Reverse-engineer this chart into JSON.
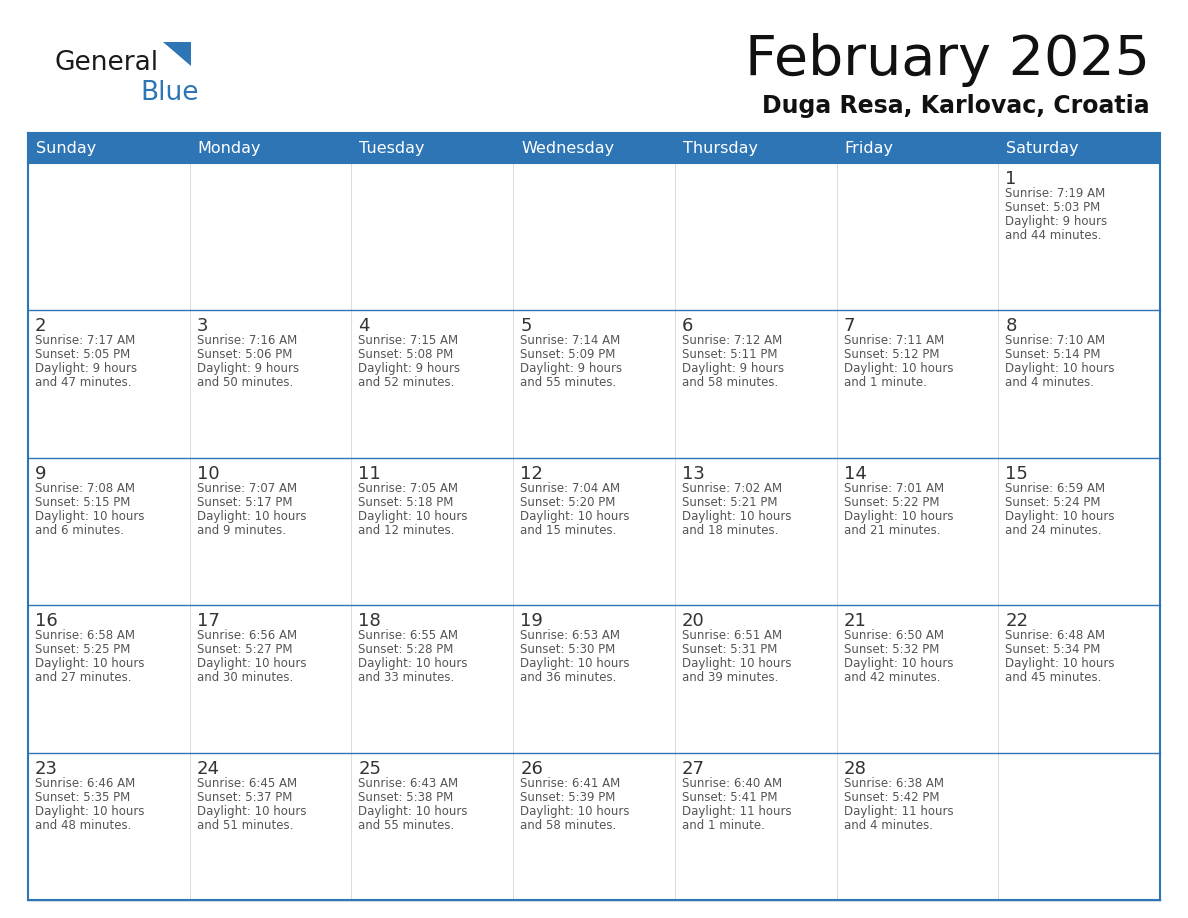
{
  "title": "February 2025",
  "subtitle": "Duga Resa, Karlovac, Croatia",
  "days_of_week": [
    "Sunday",
    "Monday",
    "Tuesday",
    "Wednesday",
    "Thursday",
    "Friday",
    "Saturday"
  ],
  "header_bg": "#2E75B6",
  "header_text": "#FFFFFF",
  "cell_bg": "#FFFFFF",
  "row_alt_bg": "#F2F2F2",
  "day_number_color": "#333333",
  "info_text_color": "#555555",
  "line_color": "#2E75B6",
  "logo_general_color": "#1a1a1a",
  "logo_blue_color": "#2E75B6",
  "calendar_data": [
    [
      null,
      null,
      null,
      null,
      null,
      null,
      {
        "day": "1",
        "sunrise": "7:19 AM",
        "sunset": "5:03 PM",
        "daylight": "9 hours\nand 44 minutes."
      }
    ],
    [
      {
        "day": "2",
        "sunrise": "7:17 AM",
        "sunset": "5:05 PM",
        "daylight": "9 hours\nand 47 minutes."
      },
      {
        "day": "3",
        "sunrise": "7:16 AM",
        "sunset": "5:06 PM",
        "daylight": "9 hours\nand 50 minutes."
      },
      {
        "day": "4",
        "sunrise": "7:15 AM",
        "sunset": "5:08 PM",
        "daylight": "9 hours\nand 52 minutes."
      },
      {
        "day": "5",
        "sunrise": "7:14 AM",
        "sunset": "5:09 PM",
        "daylight": "9 hours\nand 55 minutes."
      },
      {
        "day": "6",
        "sunrise": "7:12 AM",
        "sunset": "5:11 PM",
        "daylight": "9 hours\nand 58 minutes."
      },
      {
        "day": "7",
        "sunrise": "7:11 AM",
        "sunset": "5:12 PM",
        "daylight": "10 hours\nand 1 minute."
      },
      {
        "day": "8",
        "sunrise": "7:10 AM",
        "sunset": "5:14 PM",
        "daylight": "10 hours\nand 4 minutes."
      }
    ],
    [
      {
        "day": "9",
        "sunrise": "7:08 AM",
        "sunset": "5:15 PM",
        "daylight": "10 hours\nand 6 minutes."
      },
      {
        "day": "10",
        "sunrise": "7:07 AM",
        "sunset": "5:17 PM",
        "daylight": "10 hours\nand 9 minutes."
      },
      {
        "day": "11",
        "sunrise": "7:05 AM",
        "sunset": "5:18 PM",
        "daylight": "10 hours\nand 12 minutes."
      },
      {
        "day": "12",
        "sunrise": "7:04 AM",
        "sunset": "5:20 PM",
        "daylight": "10 hours\nand 15 minutes."
      },
      {
        "day": "13",
        "sunrise": "7:02 AM",
        "sunset": "5:21 PM",
        "daylight": "10 hours\nand 18 minutes."
      },
      {
        "day": "14",
        "sunrise": "7:01 AM",
        "sunset": "5:22 PM",
        "daylight": "10 hours\nand 21 minutes."
      },
      {
        "day": "15",
        "sunrise": "6:59 AM",
        "sunset": "5:24 PM",
        "daylight": "10 hours\nand 24 minutes."
      }
    ],
    [
      {
        "day": "16",
        "sunrise": "6:58 AM",
        "sunset": "5:25 PM",
        "daylight": "10 hours\nand 27 minutes."
      },
      {
        "day": "17",
        "sunrise": "6:56 AM",
        "sunset": "5:27 PM",
        "daylight": "10 hours\nand 30 minutes."
      },
      {
        "day": "18",
        "sunrise": "6:55 AM",
        "sunset": "5:28 PM",
        "daylight": "10 hours\nand 33 minutes."
      },
      {
        "day": "19",
        "sunrise": "6:53 AM",
        "sunset": "5:30 PM",
        "daylight": "10 hours\nand 36 minutes."
      },
      {
        "day": "20",
        "sunrise": "6:51 AM",
        "sunset": "5:31 PM",
        "daylight": "10 hours\nand 39 minutes."
      },
      {
        "day": "21",
        "sunrise": "6:50 AM",
        "sunset": "5:32 PM",
        "daylight": "10 hours\nand 42 minutes."
      },
      {
        "day": "22",
        "sunrise": "6:48 AM",
        "sunset": "5:34 PM",
        "daylight": "10 hours\nand 45 minutes."
      }
    ],
    [
      {
        "day": "23",
        "sunrise": "6:46 AM",
        "sunset": "5:35 PM",
        "daylight": "10 hours\nand 48 minutes."
      },
      {
        "day": "24",
        "sunrise": "6:45 AM",
        "sunset": "5:37 PM",
        "daylight": "10 hours\nand 51 minutes."
      },
      {
        "day": "25",
        "sunrise": "6:43 AM",
        "sunset": "5:38 PM",
        "daylight": "10 hours\nand 55 minutes."
      },
      {
        "day": "26",
        "sunrise": "6:41 AM",
        "sunset": "5:39 PM",
        "daylight": "10 hours\nand 58 minutes."
      },
      {
        "day": "27",
        "sunrise": "6:40 AM",
        "sunset": "5:41 PM",
        "daylight": "11 hours\nand 1 minute."
      },
      {
        "day": "28",
        "sunrise": "6:38 AM",
        "sunset": "5:42 PM",
        "daylight": "11 hours\nand 4 minutes."
      },
      null
    ]
  ]
}
